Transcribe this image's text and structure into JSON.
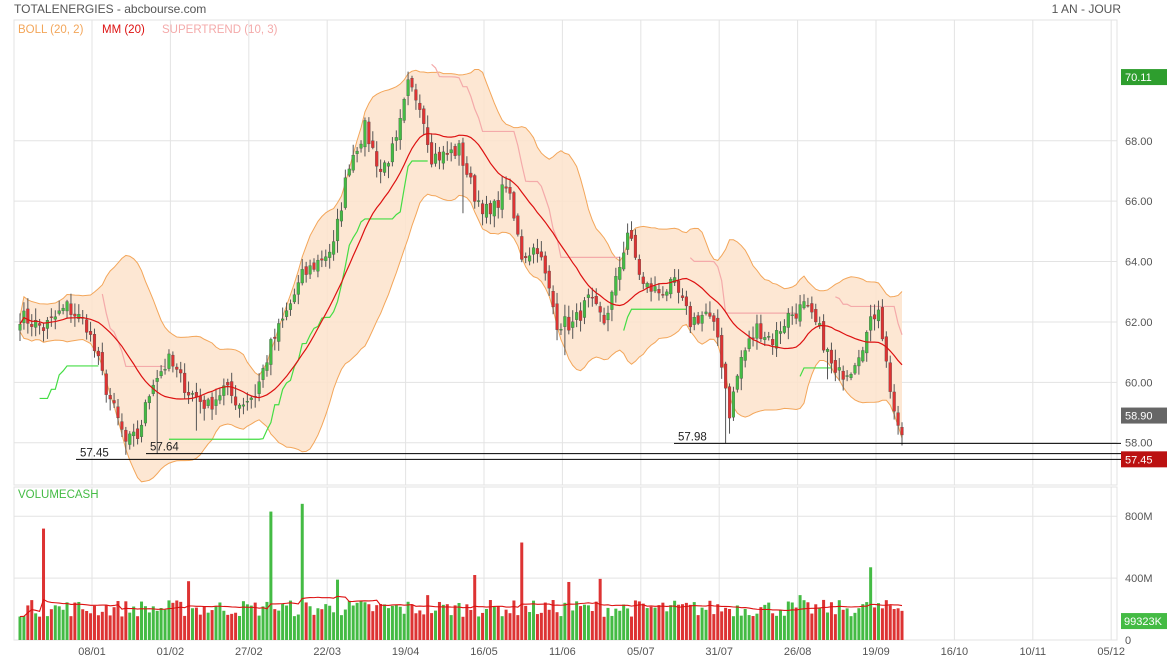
{
  "header": {
    "title": "TOTALENERGIES - abcbourse.com",
    "period": "1 AN - JOUR"
  },
  "legend": {
    "boll": "BOLL (20, 2)",
    "mm": "MM (20)",
    "supertrend": "SUPERTREND (10, 3)",
    "volume": "VOLUMECASH"
  },
  "colors": {
    "up": "#44bb44",
    "down": "#dd3333",
    "boll_fill": "#fde3cb",
    "boll_line": "#f3a65a",
    "mm": "#dd1111",
    "supertrend_up": "#44dd44",
    "supertrend_down": "#f4aaaa",
    "grid": "#e3e3e3",
    "axis_text": "#555555",
    "badge_last_high": "#2e9e2e",
    "badge_current": "#666666",
    "badge_low": "#bb1111"
  },
  "chart_data": [
    {
      "type": "candlestick",
      "title": "TOTALENERGIES",
      "subtitle": "1 AN - JOUR",
      "ylim": [
        56.6,
        72.0
      ],
      "y_ticks": [
        58,
        60,
        62,
        64,
        66,
        68
      ],
      "x_ticks": [
        "08/01",
        "01/02",
        "27/02",
        "22/03",
        "19/04",
        "16/05",
        "11/06",
        "05/07",
        "31/07",
        "26/08",
        "19/09",
        "16/10",
        "10/11",
        "05/12"
      ],
      "close_anchors": [
        [
          0,
          62.2
        ],
        [
          6,
          61.8
        ],
        [
          12,
          62.5
        ],
        [
          17,
          61.9
        ],
        [
          22,
          59.8
        ],
        [
          27,
          58.0
        ],
        [
          30,
          58.2
        ],
        [
          34,
          60.1
        ],
        [
          38,
          60.7
        ],
        [
          43,
          59.7
        ],
        [
          48,
          59.2
        ],
        [
          52,
          59.8
        ],
        [
          56,
          59.3
        ],
        [
          60,
          59.6
        ],
        [
          64,
          61.2
        ],
        [
          68,
          62.3
        ],
        [
          72,
          63.5
        ],
        [
          76,
          64.0
        ],
        [
          80,
          64.5
        ],
        [
          84,
          67.3
        ],
        [
          88,
          68.4
        ],
        [
          92,
          67.0
        ],
        [
          96,
          67.9
        ],
        [
          99,
          69.8
        ],
        [
          102,
          69.3
        ],
        [
          105,
          67.5
        ],
        [
          108,
          67.5
        ],
        [
          112,
          67.7
        ],
        [
          116,
          66.2
        ],
        [
          120,
          65.5
        ],
        [
          124,
          66.6
        ],
        [
          128,
          64.2
        ],
        [
          132,
          64.5
        ],
        [
          137,
          62.0
        ],
        [
          141,
          61.9
        ],
        [
          145,
          62.7
        ],
        [
          149,
          62.0
        ],
        [
          152,
          63.3
        ],
        [
          155,
          65.0
        ],
        [
          159,
          63.2
        ],
        [
          163,
          63.0
        ],
        [
          167,
          63.2
        ],
        [
          171,
          62.0
        ],
        [
          175,
          62.3
        ],
        [
          178,
          61.5
        ],
        [
          181,
          59.0
        ],
        [
          184,
          60.8
        ],
        [
          188,
          61.8
        ],
        [
          192,
          61.4
        ],
        [
          196,
          62.2
        ],
        [
          200,
          62.5
        ],
        [
          204,
          61.7
        ],
        [
          208,
          60.2
        ],
        [
          212,
          60.5
        ],
        [
          216,
          61.6
        ],
        [
          219,
          62.6
        ],
        [
          221,
          60.6
        ],
        [
          224,
          58.3
        ]
      ],
      "extra_wicks": [
        [
          27,
          57.6
        ],
        [
          35,
          57.64
        ],
        [
          45,
          58.4
        ],
        [
          113,
          65.6
        ],
        [
          118,
          65.2
        ],
        [
          139,
          60.9
        ],
        [
          180,
          57.98
        ],
        [
          181,
          58.3
        ],
        [
          206,
          60.1
        ]
      ],
      "price_levels": [
        {
          "label": "57.45",
          "value": 57.45
        },
        {
          "label": "57.64",
          "value": 57.64
        },
        {
          "label": "57.98",
          "value": 57.98
        }
      ],
      "badges": [
        {
          "label": "70.11",
          "value": 70.11,
          "role": "high"
        },
        {
          "label": "58.90",
          "value": 58.9,
          "role": "current"
        },
        {
          "label": "57.45",
          "value": 57.45,
          "role": "low"
        }
      ],
      "indicators": [
        "BOLL (20, 2)",
        "MM (20)",
        "SUPERTREND (10, 3)"
      ]
    },
    {
      "type": "bar",
      "title": "VOLUMECASH",
      "ylim": [
        0,
        950
      ],
      "y_ticks": [
        {
          "label": "800M",
          "value": 800
        },
        {
          "label": "400M",
          "value": 400
        },
        {
          "label": "0",
          "value": 0
        }
      ],
      "spikes": [
        [
          6,
          720
        ],
        [
          128,
          630
        ],
        [
          64,
          830
        ],
        [
          72,
          880
        ],
        [
          116,
          420
        ],
        [
          140,
          375
        ],
        [
          148,
          395
        ],
        [
          217,
          470
        ],
        [
          43,
          380
        ],
        [
          81,
          390
        ],
        [
          104,
          290
        ],
        [
          199,
          290
        ]
      ],
      "last_value_label": "99323K",
      "ma_color": "#dd1111"
    }
  ]
}
